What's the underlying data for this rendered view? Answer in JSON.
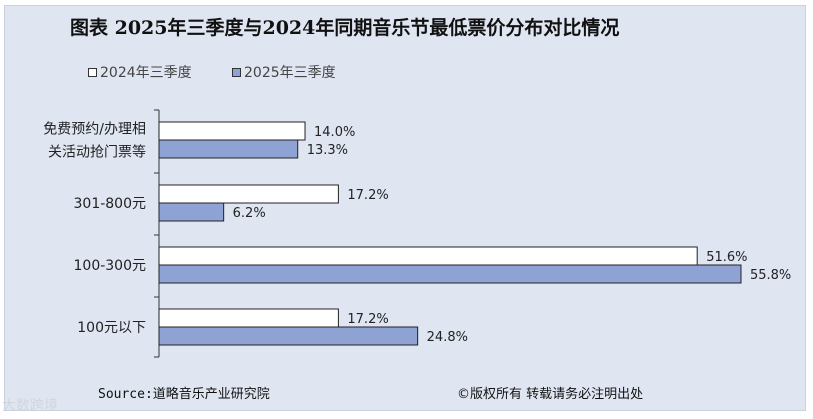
{
  "title": "图表  2025年三季度与2024年同期音乐节最低票价分布对比情况",
  "footer": {
    "source": "Source:道略音乐产业研究院",
    "copyright": "©版权所有  转载请务必注明出处"
  },
  "watermark": "大数跨境",
  "colors": {
    "series_2024": "#ffffff",
    "series_2025": "#8ea3d4",
    "bar_stroke": "#222222",
    "background": "#dfe6f2"
  },
  "chart_data": {
    "type": "bar",
    "orientation": "horizontal",
    "title": "图表  2025年三季度与2024年同期音乐节最低票价分布对比情况",
    "categories": [
      [
        "免费预约/办理相",
        "关活动抢门票等"
      ],
      [
        "301-800元"
      ],
      [
        "100-300元"
      ],
      [
        "100元以下"
      ]
    ],
    "series": [
      {
        "name": "2024年三季度",
        "values": [
          14.0,
          17.2,
          51.6,
          17.2
        ],
        "labels": [
          "14.0%",
          "17.2%",
          "51.6%",
          "17.2%"
        ]
      },
      {
        "name": "2025年三季度",
        "values": [
          13.3,
          6.2,
          55.8,
          24.8
        ],
        "labels": [
          "13.3%",
          "6.2%",
          "55.8%",
          "24.8%"
        ]
      }
    ],
    "xlim": [
      0,
      60
    ],
    "xlabel": "",
    "ylabel": "",
    "grid": false,
    "legend": "top-left"
  }
}
